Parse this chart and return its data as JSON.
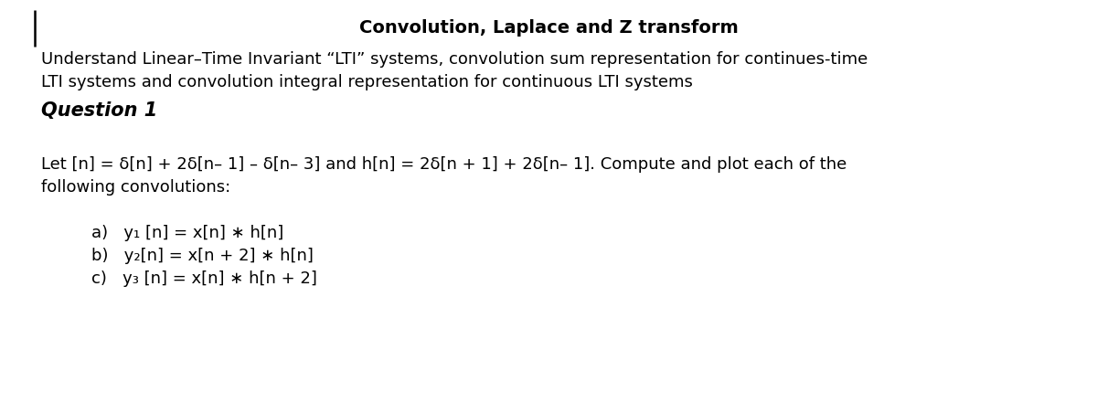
{
  "background_color": "#ffffff",
  "title": "Convolution, Laplace and Z transform",
  "title_fontsize": 14,
  "description_line1": "Understand Linear–Time Invariant “LTI” systems, convolution sum representation for continues-time",
  "description_line2": "LTI systems and convolution integral representation for continuous LTI systems",
  "description_fontsize": 13,
  "question_label": "Question 1",
  "question_fontsize": 15,
  "body_line1": "Let [n] = δ[n] + 2δ[n– 1] – δ[n– 3] and h[n] = 2δ[n + 1] + 2δ[n– 1]. Compute and plot each of the",
  "body_line2": "following convolutions:",
  "body_fontsize": 13,
  "item_a": "a)   y₁ [n] = x[n] ∗ h[n]",
  "item_b": "b)   y₂[n] = x[n + 2] ∗ h[n]",
  "item_c": "c)   y₃ [n] = x[n] ∗ h[n + 2]",
  "items_fontsize": 13
}
